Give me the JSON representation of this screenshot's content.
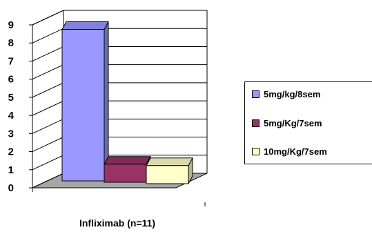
{
  "chart_data": {
    "type": "bar",
    "style": "3d-clustered-column",
    "categories": [
      "Infliximab (n=11)"
    ],
    "series": [
      {
        "name": "5mg/kg/8sem",
        "values": [
          9
        ],
        "color": "#9999FF"
      },
      {
        "name": "5mg/Kg/7sem",
        "values": [
          1
        ],
        "color": "#993366"
      },
      {
        "name": "10mg/Kg/7sem",
        "values": [
          1
        ],
        "color": "#FFFFCC"
      }
    ],
    "ylim": [
      0,
      9
    ],
    "yticks": [
      "0",
      "1",
      "2",
      "3",
      "4",
      "5",
      "6",
      "7",
      "8",
      "9"
    ],
    "grid": true,
    "legend_position": "right",
    "title": "",
    "xlabel": "",
    "ylabel": ""
  }
}
